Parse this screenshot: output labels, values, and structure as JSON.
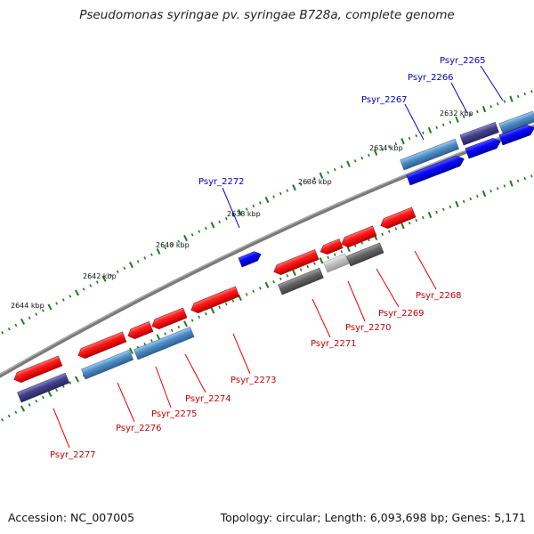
{
  "title": "Pseudomonas syringae pv. syringae B728a, complete genome",
  "footer": {
    "accession": "Accession: NC_007005",
    "topology": "Topology: circular; Length: 6,093,698 bp; Genes: 5,171"
  },
  "colors": {
    "backbone": "#808080",
    "tick": "#1e7a1e",
    "forward_label": "#0000cc",
    "reverse_label": "#cc0000",
    "cds_red": "#ff0000",
    "cds_blue": "#0000ff",
    "feature_steel": "#4f8fc8",
    "feature_slate": "#45418a",
    "feature_gray": "#666666",
    "feature_lightgray": "#bfbfbf"
  },
  "ticks": [
    "2632 kbp",
    "2634 kbp",
    "2636 kbp",
    "2638 kbp",
    "2640 kbp",
    "2642 kbp",
    "2644 kbp"
  ],
  "forward_labels": [
    "Psyr_2265",
    "Psyr_2266",
    "Psyr_2267",
    "Psyr_2272"
  ],
  "reverse_labels": [
    "Psyr_2268",
    "Psyr_2269",
    "Psyr_2270",
    "Psyr_2271",
    "Psyr_2273",
    "Psyr_2274",
    "Psyr_2275",
    "Psyr_2276",
    "Psyr_2277"
  ]
}
